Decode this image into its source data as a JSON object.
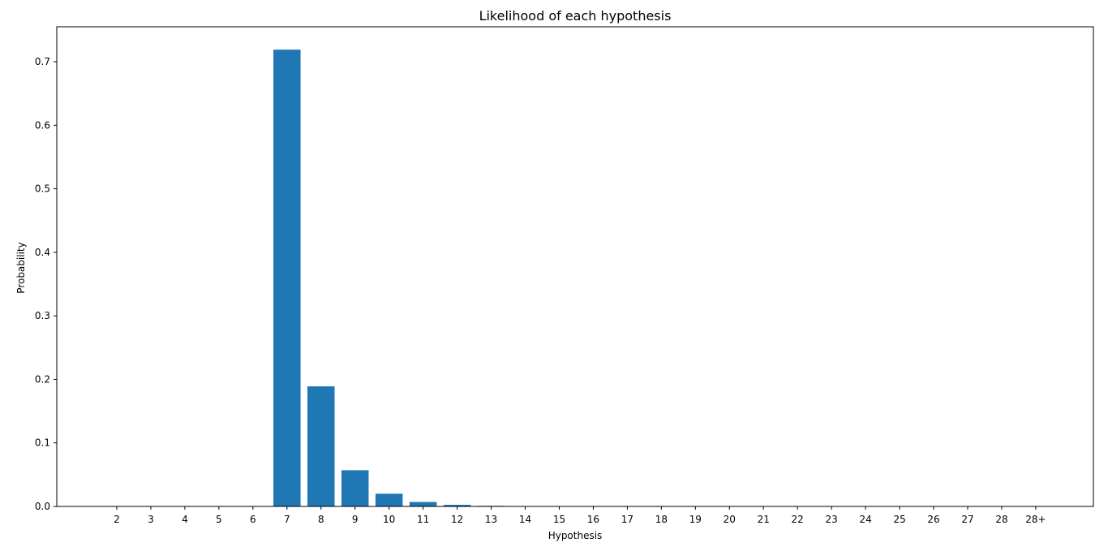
{
  "chart_data": {
    "type": "bar",
    "title": "Likelihood of each hypothesis",
    "xlabel": "Hypothesis",
    "ylabel": "Probability",
    "categories": [
      "2",
      "3",
      "4",
      "5",
      "6",
      "7",
      "8",
      "9",
      "10",
      "11",
      "12",
      "13",
      "14",
      "15",
      "16",
      "17",
      "18",
      "19",
      "20",
      "21",
      "22",
      "23",
      "24",
      "25",
      "26",
      "27",
      "28",
      "28+"
    ],
    "values": [
      0,
      0,
      0,
      0,
      0,
      0.719,
      0.189,
      0.057,
      0.02,
      0.007,
      0.0025,
      0.0009,
      0.0003,
      0.0001,
      0,
      0,
      0,
      0,
      0,
      0,
      0,
      0,
      0,
      0,
      0,
      0,
      0,
      0
    ],
    "ylim": [
      0,
      0.755
    ],
    "yticks": [
      0.0,
      0.1,
      0.2,
      0.3,
      0.4,
      0.5,
      0.6,
      0.7
    ],
    "ytick_labels": [
      "0.0",
      "0.1",
      "0.2",
      "0.3",
      "0.4",
      "0.5",
      "0.6",
      "0.7"
    ],
    "grid": false,
    "legend": "none",
    "bar_color": "#1f77b4"
  }
}
